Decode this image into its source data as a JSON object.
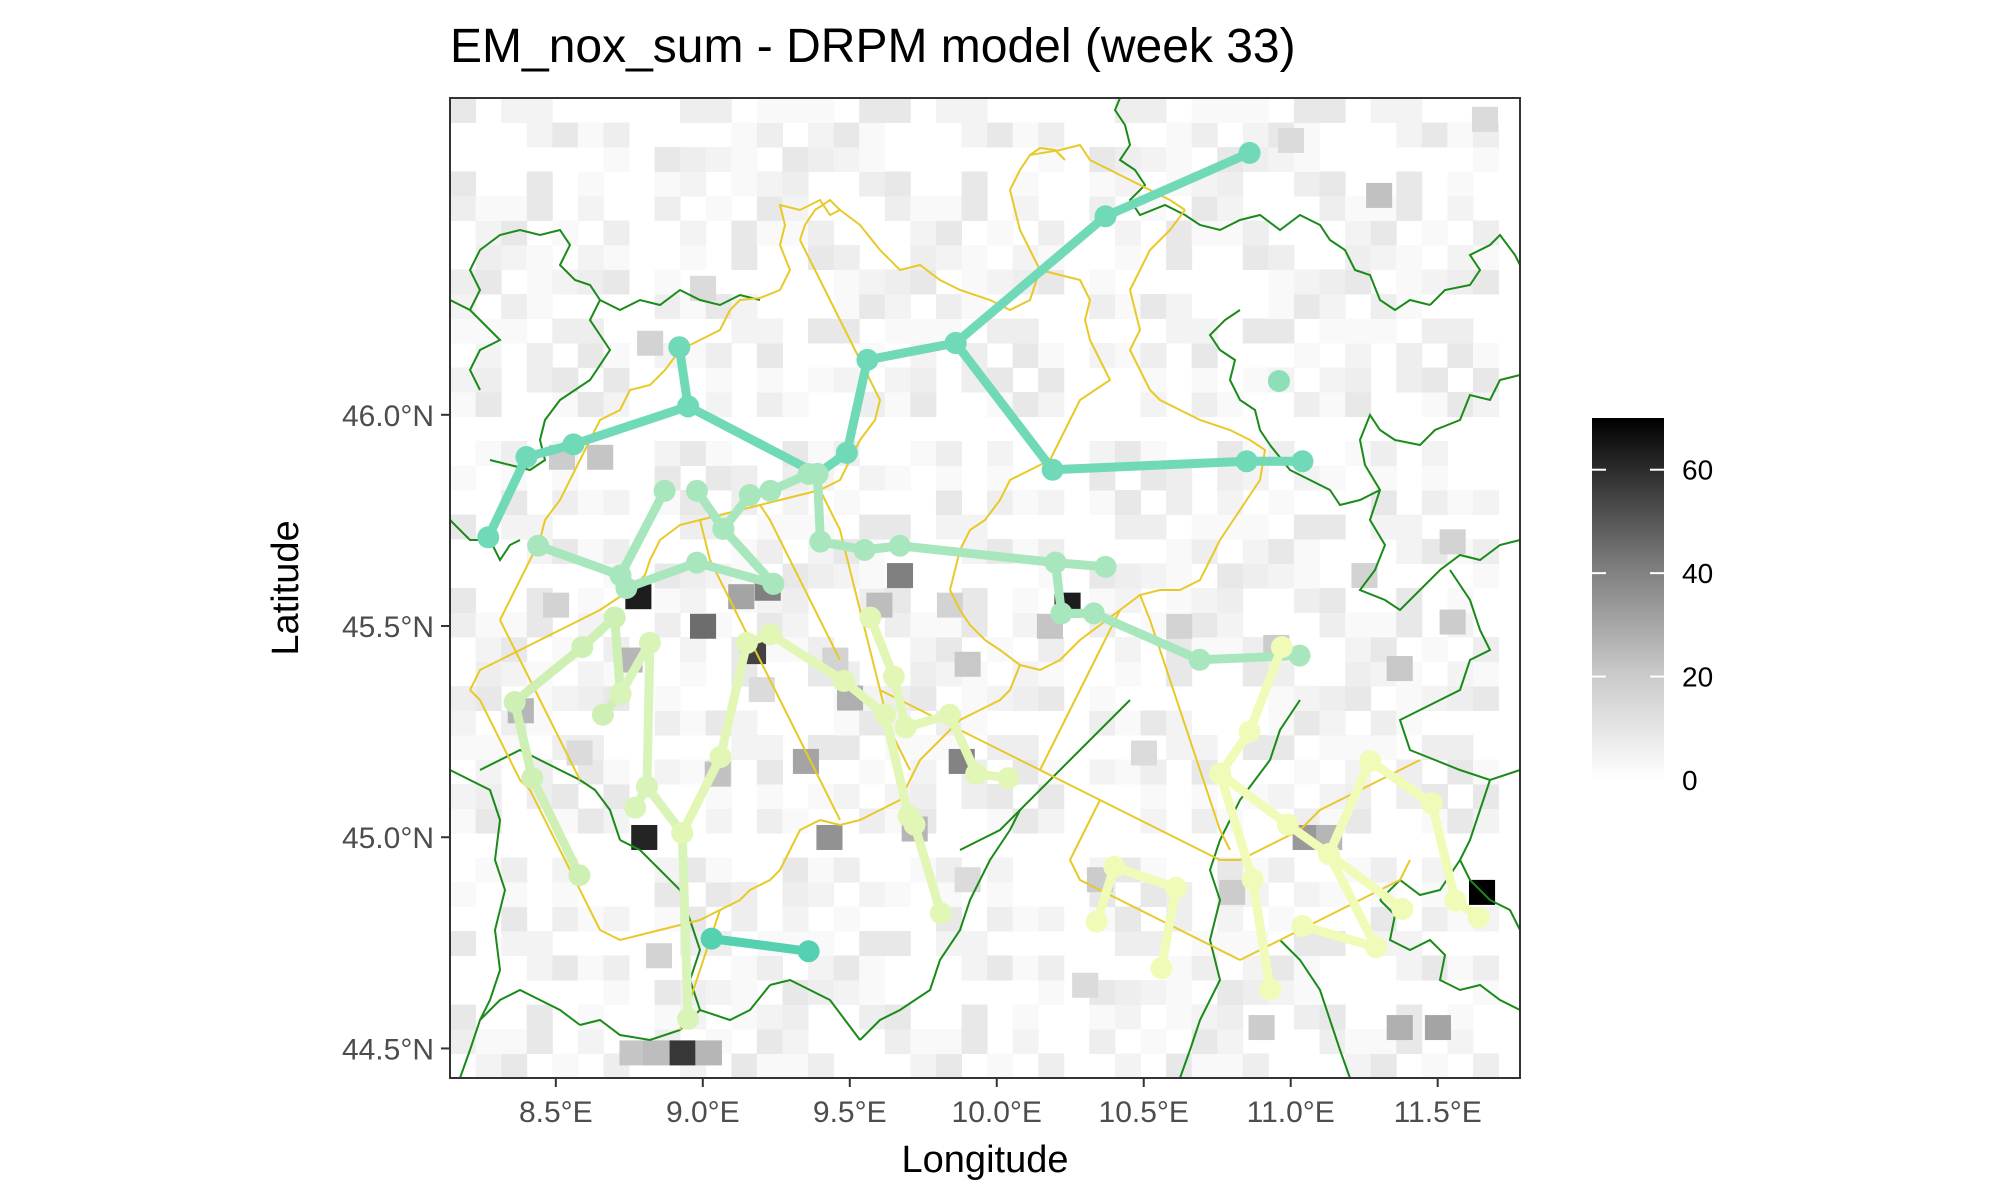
{
  "chart_data": {
    "type": "map",
    "title": "EM_nox_sum - DRPM model (week 33)",
    "xlabel": "Longitude",
    "ylabel": "Latitude",
    "xlim": [
      8.14,
      11.78
    ],
    "ylim": [
      44.43,
      46.75
    ],
    "x_ticks": [
      {
        "value": 8.5,
        "label": "8.5°E"
      },
      {
        "value": 9.0,
        "label": "9.0°E"
      },
      {
        "value": 9.5,
        "label": "9.5°E"
      },
      {
        "value": 10.0,
        "label": "10.0°E"
      },
      {
        "value": 10.5,
        "label": "10.5°E"
      },
      {
        "value": 11.0,
        "label": "11.0°E"
      },
      {
        "value": 11.5,
        "label": "11.5°E"
      }
    ],
    "y_ticks": [
      {
        "value": 44.5,
        "label": "44.5°N"
      },
      {
        "value": 45.0,
        "label": "45.0°N"
      },
      {
        "value": 45.5,
        "label": "45.5°N"
      },
      {
        "value": 46.0,
        "label": "46.0°N"
      }
    ],
    "colorbar": {
      "min": 0,
      "max": 70,
      "ticks": [
        {
          "value": 0,
          "label": "0"
        },
        {
          "value": 20,
          "label": "20"
        },
        {
          "value": 40,
          "label": "40"
        },
        {
          "value": 60,
          "label": "60"
        }
      ],
      "low_color": "#ffffff",
      "high_color": "#000000"
    },
    "heatmap_cell_size": [
      0.087,
      0.058
    ],
    "heatmap_hotspots": [
      [
        8.78,
        45.57,
        62
      ],
      [
        8.8,
        45.0,
        60
      ],
      [
        8.93,
        44.49,
        55
      ],
      [
        9.17,
        45.44,
        52
      ],
      [
        9.0,
        45.5,
        40
      ],
      [
        9.22,
        45.59,
        35
      ],
      [
        11.65,
        44.87,
        70
      ],
      [
        10.24,
        45.55,
        62
      ],
      [
        9.67,
        45.62,
        35
      ],
      [
        8.75,
        45.42,
        20
      ],
      [
        9.5,
        45.33,
        22
      ],
      [
        9.35,
        45.18,
        25
      ],
      [
        9.43,
        45.0,
        30
      ],
      [
        9.88,
        45.18,
        34
      ],
      [
        9.72,
        45.02,
        20
      ],
      [
        9.9,
        45.41,
        15
      ],
      [
        9.05,
        45.15,
        17
      ],
      [
        8.38,
        45.3,
        20
      ],
      [
        10.18,
        45.5,
        16
      ],
      [
        10.95,
        45.45,
        14
      ],
      [
        11.05,
        45.0,
        28
      ],
      [
        11.13,
        45.0,
        20
      ],
      [
        11.37,
        44.55,
        22
      ],
      [
        11.5,
        44.55,
        25
      ],
      [
        11.37,
        45.4,
        15
      ],
      [
        11.55,
        45.51,
        14
      ],
      [
        10.8,
        44.87,
        14
      ],
      [
        10.35,
        44.9,
        14
      ],
      [
        10.62,
        45.5,
        12
      ],
      [
        11.3,
        46.52,
        17
      ],
      [
        11.0,
        46.65,
        10
      ],
      [
        11.66,
        46.7,
        10
      ],
      [
        9.0,
        46.3,
        10
      ],
      [
        8.82,
        46.17,
        12
      ],
      [
        8.76,
        44.49,
        16
      ],
      [
        8.84,
        44.49,
        18
      ],
      [
        9.02,
        44.49,
        20
      ],
      [
        10.9,
        44.55,
        14
      ],
      [
        8.85,
        44.72,
        12
      ],
      [
        9.9,
        44.9,
        10
      ],
      [
        10.5,
        45.2,
        10
      ],
      [
        9.6,
        45.55,
        18
      ],
      [
        8.52,
        45.9,
        14
      ],
      [
        8.65,
        45.9,
        16
      ],
      [
        9.13,
        45.57,
        25
      ],
      [
        9.45,
        45.42,
        12
      ],
      [
        9.2,
        45.35,
        10
      ],
      [
        9.84,
        45.55,
        12
      ],
      [
        11.25,
        45.62,
        12
      ],
      [
        11.55,
        45.7,
        12
      ],
      [
        10.3,
        44.65,
        10
      ],
      [
        8.5,
        45.55,
        12
      ],
      [
        8.58,
        45.2,
        10
      ]
    ],
    "series": [
      {
        "color": "#55d1b2",
        "points": [
          [
            9.03,
            44.76
          ],
          [
            9.36,
            44.73
          ]
        ]
      },
      {
        "color": "#70dab8",
        "points": [
          [
            8.27,
            45.71
          ],
          [
            8.4,
            45.9
          ],
          [
            8.56,
            45.93
          ],
          [
            8.95,
            46.02
          ],
          [
            9.39,
            45.86
          ],
          [
            9.49,
            45.91
          ],
          [
            9.56,
            46.13
          ],
          [
            9.86,
            46.17
          ],
          [
            10.19,
            45.87
          ],
          [
            10.85,
            45.89
          ],
          [
            11.04,
            45.89
          ]
        ]
      },
      {
        "color": "#70dab8",
        "points": [
          [
            9.86,
            46.17
          ],
          [
            10.37,
            46.47
          ],
          [
            10.86,
            46.62
          ]
        ]
      },
      {
        "color": "#70dab8",
        "points": [
          [
            8.92,
            46.16
          ],
          [
            8.95,
            46.02
          ]
        ]
      },
      {
        "color": "#8ddfb8",
        "points": [
          [
            10.96,
            46.08
          ]
        ]
      },
      {
        "color": "#a8e7bd",
        "points": [
          [
            8.44,
            45.69
          ],
          [
            8.72,
            45.62
          ],
          [
            8.87,
            45.82
          ]
        ]
      },
      {
        "color": "#a8e7bd",
        "points": [
          [
            8.74,
            45.59
          ],
          [
            8.98,
            45.65
          ],
          [
            9.24,
            45.6
          ]
        ]
      },
      {
        "color": "#a8e7bd",
        "points": [
          [
            8.98,
            45.82
          ],
          [
            9.07,
            45.73
          ],
          [
            9.24,
            45.6
          ]
        ]
      },
      {
        "color": "#a8e7bd",
        "points": [
          [
            9.07,
            45.73
          ],
          [
            9.16,
            45.81
          ],
          [
            9.23,
            45.82
          ],
          [
            9.36,
            45.86
          ]
        ]
      },
      {
        "color": "#a8e7bd",
        "points": [
          [
            9.39,
            45.86
          ],
          [
            9.4,
            45.7
          ],
          [
            9.55,
            45.68
          ],
          [
            9.67,
            45.69
          ],
          [
            10.2,
            45.65
          ],
          [
            10.37,
            45.64
          ]
        ]
      },
      {
        "color": "#a8e7bd",
        "points": [
          [
            10.2,
            45.65
          ],
          [
            10.22,
            45.53
          ],
          [
            10.33,
            45.53
          ],
          [
            10.69,
            45.42
          ],
          [
            11.03,
            45.43
          ]
        ]
      },
      {
        "color": "#cff0b5",
        "points": [
          [
            8.7,
            45.52
          ],
          [
            8.59,
            45.45
          ],
          [
            8.36,
            45.32
          ],
          [
            8.42,
            45.14
          ],
          [
            8.58,
            44.91
          ]
        ]
      },
      {
        "color": "#cff0b5",
        "points": [
          [
            8.7,
            45.52
          ],
          [
            8.72,
            45.34
          ],
          [
            8.66,
            45.29
          ]
        ]
      },
      {
        "color": "#d9f4b8",
        "points": [
          [
            8.72,
            45.34
          ],
          [
            8.82,
            45.46
          ],
          [
            8.81,
            45.12
          ],
          [
            8.93,
            45.01
          ],
          [
            8.95,
            44.57
          ]
        ]
      },
      {
        "color": "#d9f4b8",
        "points": [
          [
            8.81,
            45.12
          ],
          [
            8.77,
            45.07
          ]
        ]
      },
      {
        "color": "#e2f7b5",
        "points": [
          [
            8.93,
            45.01
          ],
          [
            9.06,
            45.19
          ],
          [
            9.15,
            45.46
          ],
          [
            9.23,
            45.48
          ],
          [
            9.48,
            45.37
          ],
          [
            9.62,
            45.29
          ]
        ]
      },
      {
        "color": "#e2f7b5",
        "points": [
          [
            9.57,
            45.52
          ],
          [
            9.65,
            45.38
          ],
          [
            9.69,
            45.26
          ],
          [
            9.84,
            45.29
          ],
          [
            9.93,
            45.15
          ],
          [
            10.04,
            45.14
          ]
        ]
      },
      {
        "color": "#e2f7b5",
        "points": [
          [
            9.62,
            45.29
          ],
          [
            9.7,
            45.05
          ],
          [
            9.72,
            45.03
          ],
          [
            9.81,
            44.82
          ]
        ]
      },
      {
        "color": "#f0fbb8",
        "points": [
          [
            10.97,
            45.45
          ],
          [
            10.86,
            45.25
          ],
          [
            10.76,
            45.15
          ],
          [
            10.99,
            45.03
          ],
          [
            11.13,
            44.96
          ],
          [
            11.38,
            44.83
          ]
        ]
      },
      {
        "color": "#f0fbb8",
        "points": [
          [
            10.76,
            45.15
          ],
          [
            10.87,
            44.9
          ],
          [
            10.93,
            44.64
          ]
        ]
      },
      {
        "color": "#f0fbb8",
        "points": [
          [
            11.13,
            44.96
          ],
          [
            11.27,
            45.18
          ],
          [
            11.48,
            45.08
          ],
          [
            11.56,
            44.85
          ],
          [
            11.64,
            44.81
          ]
        ]
      },
      {
        "color": "#f0fbb8",
        "points": [
          [
            11.13,
            44.96
          ],
          [
            11.29,
            44.74
          ],
          [
            11.04,
            44.79
          ]
        ]
      },
      {
        "color": "#f0fbb8",
        "points": [
          [
            10.34,
            44.8
          ],
          [
            10.4,
            44.93
          ],
          [
            10.61,
            44.88
          ],
          [
            10.56,
            44.69
          ]
        ]
      }
    ]
  }
}
